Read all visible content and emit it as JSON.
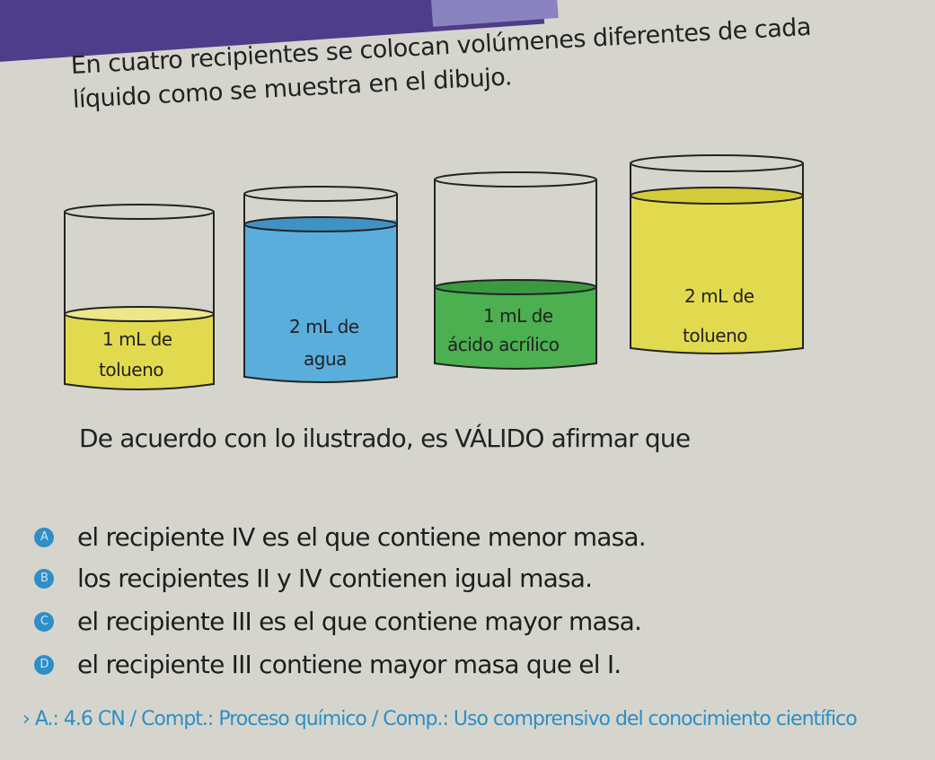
{
  "intro_text": "En cuatro recipientes se colocan volúmenes diferentes de cada líquido como se muestra en el dibujo.",
  "containers": [
    {
      "line1": "1 mL de",
      "line2": "tolueno",
      "color": "#e2da4e"
    },
    {
      "line1": "2 mL de",
      "line2": "agua",
      "color": "#5aaedb"
    },
    {
      "line1": "1 mL de",
      "line2": "ácido acrílico",
      "color": "#4caf50"
    },
    {
      "line1": "2 mL de",
      "line2": "tolueno",
      "color": "#e2da4e"
    }
  ],
  "question": "De acuerdo con lo ilustrado, es VÁLIDO afirmar que",
  "options": [
    {
      "letter": "A",
      "text": "el recipiente IV es el que contiene menor masa."
    },
    {
      "letter": "B",
      "text": "los recipientes II y IV contienen igual masa."
    },
    {
      "letter": "C",
      "text": "el recipiente III es el que contiene mayor masa."
    },
    {
      "letter": "D",
      "text": "el recipiente III contiene mayor masa que el I."
    }
  ],
  "meta": {
    "arrow": "›",
    "text": "A.: 4.6 CN / Compt.: Proceso químico / Comp.: Uso comprensivo del conocimiento científico"
  },
  "colors": {
    "accent": "#2f8ec6",
    "band": "#4e3d8a"
  }
}
